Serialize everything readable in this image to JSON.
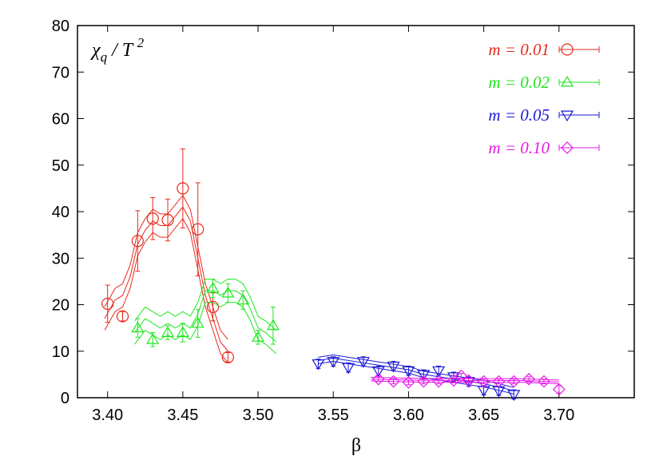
{
  "chart_data": {
    "type": "scatter",
    "xlabel": "β",
    "ylabel": [
      "χ",
      "q",
      " / T ",
      "2"
    ],
    "xlim": [
      3.38,
      3.75
    ],
    "ylim": [
      0,
      80
    ],
    "xticks": [
      {
        "value": 3.4,
        "label": "3.40"
      },
      {
        "value": 3.45,
        "label": "3.45"
      },
      {
        "value": 3.5,
        "label": "3.50"
      },
      {
        "value": 3.55,
        "label": "3.55"
      },
      {
        "value": 3.6,
        "label": "3.60"
      },
      {
        "value": 3.65,
        "label": "3.65"
      },
      {
        "value": 3.7,
        "label": "3.70"
      }
    ],
    "yticks": [
      0,
      10,
      20,
      30,
      40,
      50,
      60,
      70,
      80
    ],
    "legend": "top-right",
    "series": [
      {
        "name": "m = 0.01",
        "color": "#e8291c",
        "marker": "circle",
        "x": [
          3.4,
          3.41,
          3.42,
          3.43,
          3.44,
          3.45,
          3.46,
          3.47,
          3.48
        ],
        "values": [
          20.2,
          17.5,
          33.7,
          38.5,
          38.2,
          45,
          36.2,
          19.5,
          8.7
        ],
        "errors": [
          4,
          1,
          6.5,
          4.5,
          4.5,
          8.5,
          10,
          3,
          1
        ],
        "curve_x": [
          3.398,
          3.405,
          3.41,
          3.415,
          3.42,
          3.425,
          3.43,
          3.435,
          3.44,
          3.445,
          3.45,
          3.455,
          3.46,
          3.465,
          3.47,
          3.475,
          3.48
        ],
        "curve_values": [
          17,
          21,
          22,
          26,
          33,
          36,
          38,
          37,
          37,
          39,
          41,
          38,
          30,
          22,
          17,
          12,
          10
        ],
        "curve_errors": [
          2.5,
          2.5,
          2.5,
          2.5,
          2.5,
          2.5,
          2.5,
          2.5,
          2.5,
          2.5,
          2.5,
          2.5,
          2.5,
          2.5,
          2.5,
          2.5,
          2.5
        ]
      },
      {
        "name": "m = 0.02",
        "color": "#1ee61e",
        "marker": "triangle-up",
        "x": [
          3.42,
          3.43,
          3.44,
          3.45,
          3.46,
          3.47,
          3.48,
          3.49,
          3.5,
          3.51
        ],
        "values": [
          15,
          12.5,
          14,
          14,
          16,
          23.5,
          22.5,
          21,
          13,
          15.5
        ],
        "errors": [
          2,
          1.5,
          1.5,
          2,
          3,
          2,
          2,
          2,
          1.5,
          4
        ],
        "curve_x": [
          3.418,
          3.425,
          3.43,
          3.435,
          3.44,
          3.445,
          3.45,
          3.455,
          3.46,
          3.465,
          3.47,
          3.475,
          3.48,
          3.485,
          3.49,
          3.495,
          3.5,
          3.505,
          3.512
        ],
        "curve_values": [
          14,
          17,
          16,
          15,
          16,
          15,
          16,
          15,
          18,
          23,
          23,
          22,
          23,
          23,
          22,
          19,
          15,
          14,
          12
        ],
        "curve_errors": [
          2.5,
          2.5,
          2.5,
          2.5,
          2.5,
          2.5,
          2.5,
          2.5,
          2.5,
          2.5,
          2.5,
          2.5,
          2.5,
          2.5,
          2.5,
          2.5,
          2.5,
          2.5,
          2.5
        ]
      },
      {
        "name": "m = 0.05",
        "color": "#1a1ad6",
        "marker": "triangle-down",
        "x": [
          3.54,
          3.55,
          3.56,
          3.57,
          3.58,
          3.59,
          3.6,
          3.61,
          3.62,
          3.63,
          3.64,
          3.65,
          3.66,
          3.67
        ],
        "values": [
          7.3,
          7.8,
          6.5,
          7.8,
          5.8,
          6.8,
          5.8,
          5,
          5.8,
          4.5,
          3.5,
          1.6,
          1.5,
          0.7
        ],
        "errors": [
          1,
          1,
          1,
          1,
          1,
          1,
          1,
          1,
          1,
          1,
          1,
          1,
          1,
          1
        ],
        "curve_x": [
          3.54,
          3.55,
          3.56,
          3.57,
          3.58,
          3.59,
          3.6,
          3.61,
          3.62,
          3.63,
          3.64,
          3.65,
          3.66,
          3.67
        ],
        "curve_values": [
          8,
          8.5,
          8,
          7.5,
          7,
          6.5,
          6,
          5,
          4.5,
          4,
          3.5,
          3,
          2.3,
          1.5
        ],
        "curve_errors": [
          0.7,
          0.7,
          0.7,
          0.7,
          0.7,
          0.7,
          0.7,
          0.7,
          0.7,
          0.7,
          0.7,
          0.7,
          0.7,
          0.7
        ]
      },
      {
        "name": "m = 0.10",
        "color": "#e619e6",
        "marker": "diamond",
        "x": [
          3.58,
          3.59,
          3.6,
          3.61,
          3.62,
          3.63,
          3.635,
          3.64,
          3.65,
          3.66,
          3.67,
          3.68,
          3.69,
          3.7
        ],
        "values": [
          4,
          3.5,
          3.3,
          3.5,
          3.5,
          3.7,
          4.7,
          3.7,
          3.5,
          3.5,
          3.5,
          4,
          3.5,
          1.8
        ],
        "errors": [
          0.5,
          0.5,
          0.5,
          0.5,
          0.5,
          0.5,
          0.5,
          0.5,
          0.5,
          0.5,
          0.5,
          0.5,
          0.5,
          0.8
        ],
        "curve_x": [
          3.575,
          3.6,
          3.625,
          3.65,
          3.675,
          3.7
        ],
        "curve_values": [
          4,
          3.8,
          3.7,
          3.7,
          3.7,
          3.4
        ],
        "curve_errors": [
          0.4,
          0.4,
          0.4,
          0.4,
          0.4,
          0.4
        ]
      }
    ]
  }
}
